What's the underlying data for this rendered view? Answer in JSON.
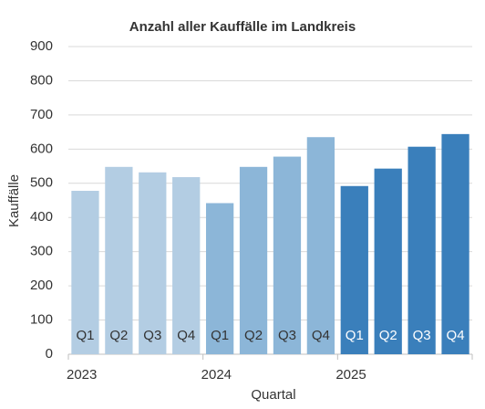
{
  "chart_data": {
    "type": "bar",
    "title": "Anzahl aller Kauffälle im Landkreis",
    "x_label": "Quartal",
    "y_label": "Kauffälle",
    "series": [
      {
        "name": "2023",
        "color": "#b3cde3",
        "label_color": "#333333",
        "categories": [
          "Q1",
          "Q2",
          "Q3",
          "Q4"
        ],
        "values": [
          478,
          548,
          532,
          518
        ]
      },
      {
        "name": "2024",
        "color": "#8cb6d8",
        "label_color": "#333333",
        "categories": [
          "Q1",
          "Q2",
          "Q3",
          "Q4"
        ],
        "values": [
          442,
          548,
          578,
          635
        ]
      },
      {
        "name": "2025",
        "color": "#3a7fbb",
        "label_color": "#ffffff",
        "categories": [
          "Q1",
          "Q2",
          "Q3",
          "Q4"
        ],
        "values": [
          492,
          543,
          607,
          644
        ]
      }
    ],
    "ylim": [
      0,
      900
    ],
    "yticks": [
      0,
      100,
      200,
      300,
      400,
      500,
      600,
      700,
      800,
      900
    ],
    "grid": true
  }
}
